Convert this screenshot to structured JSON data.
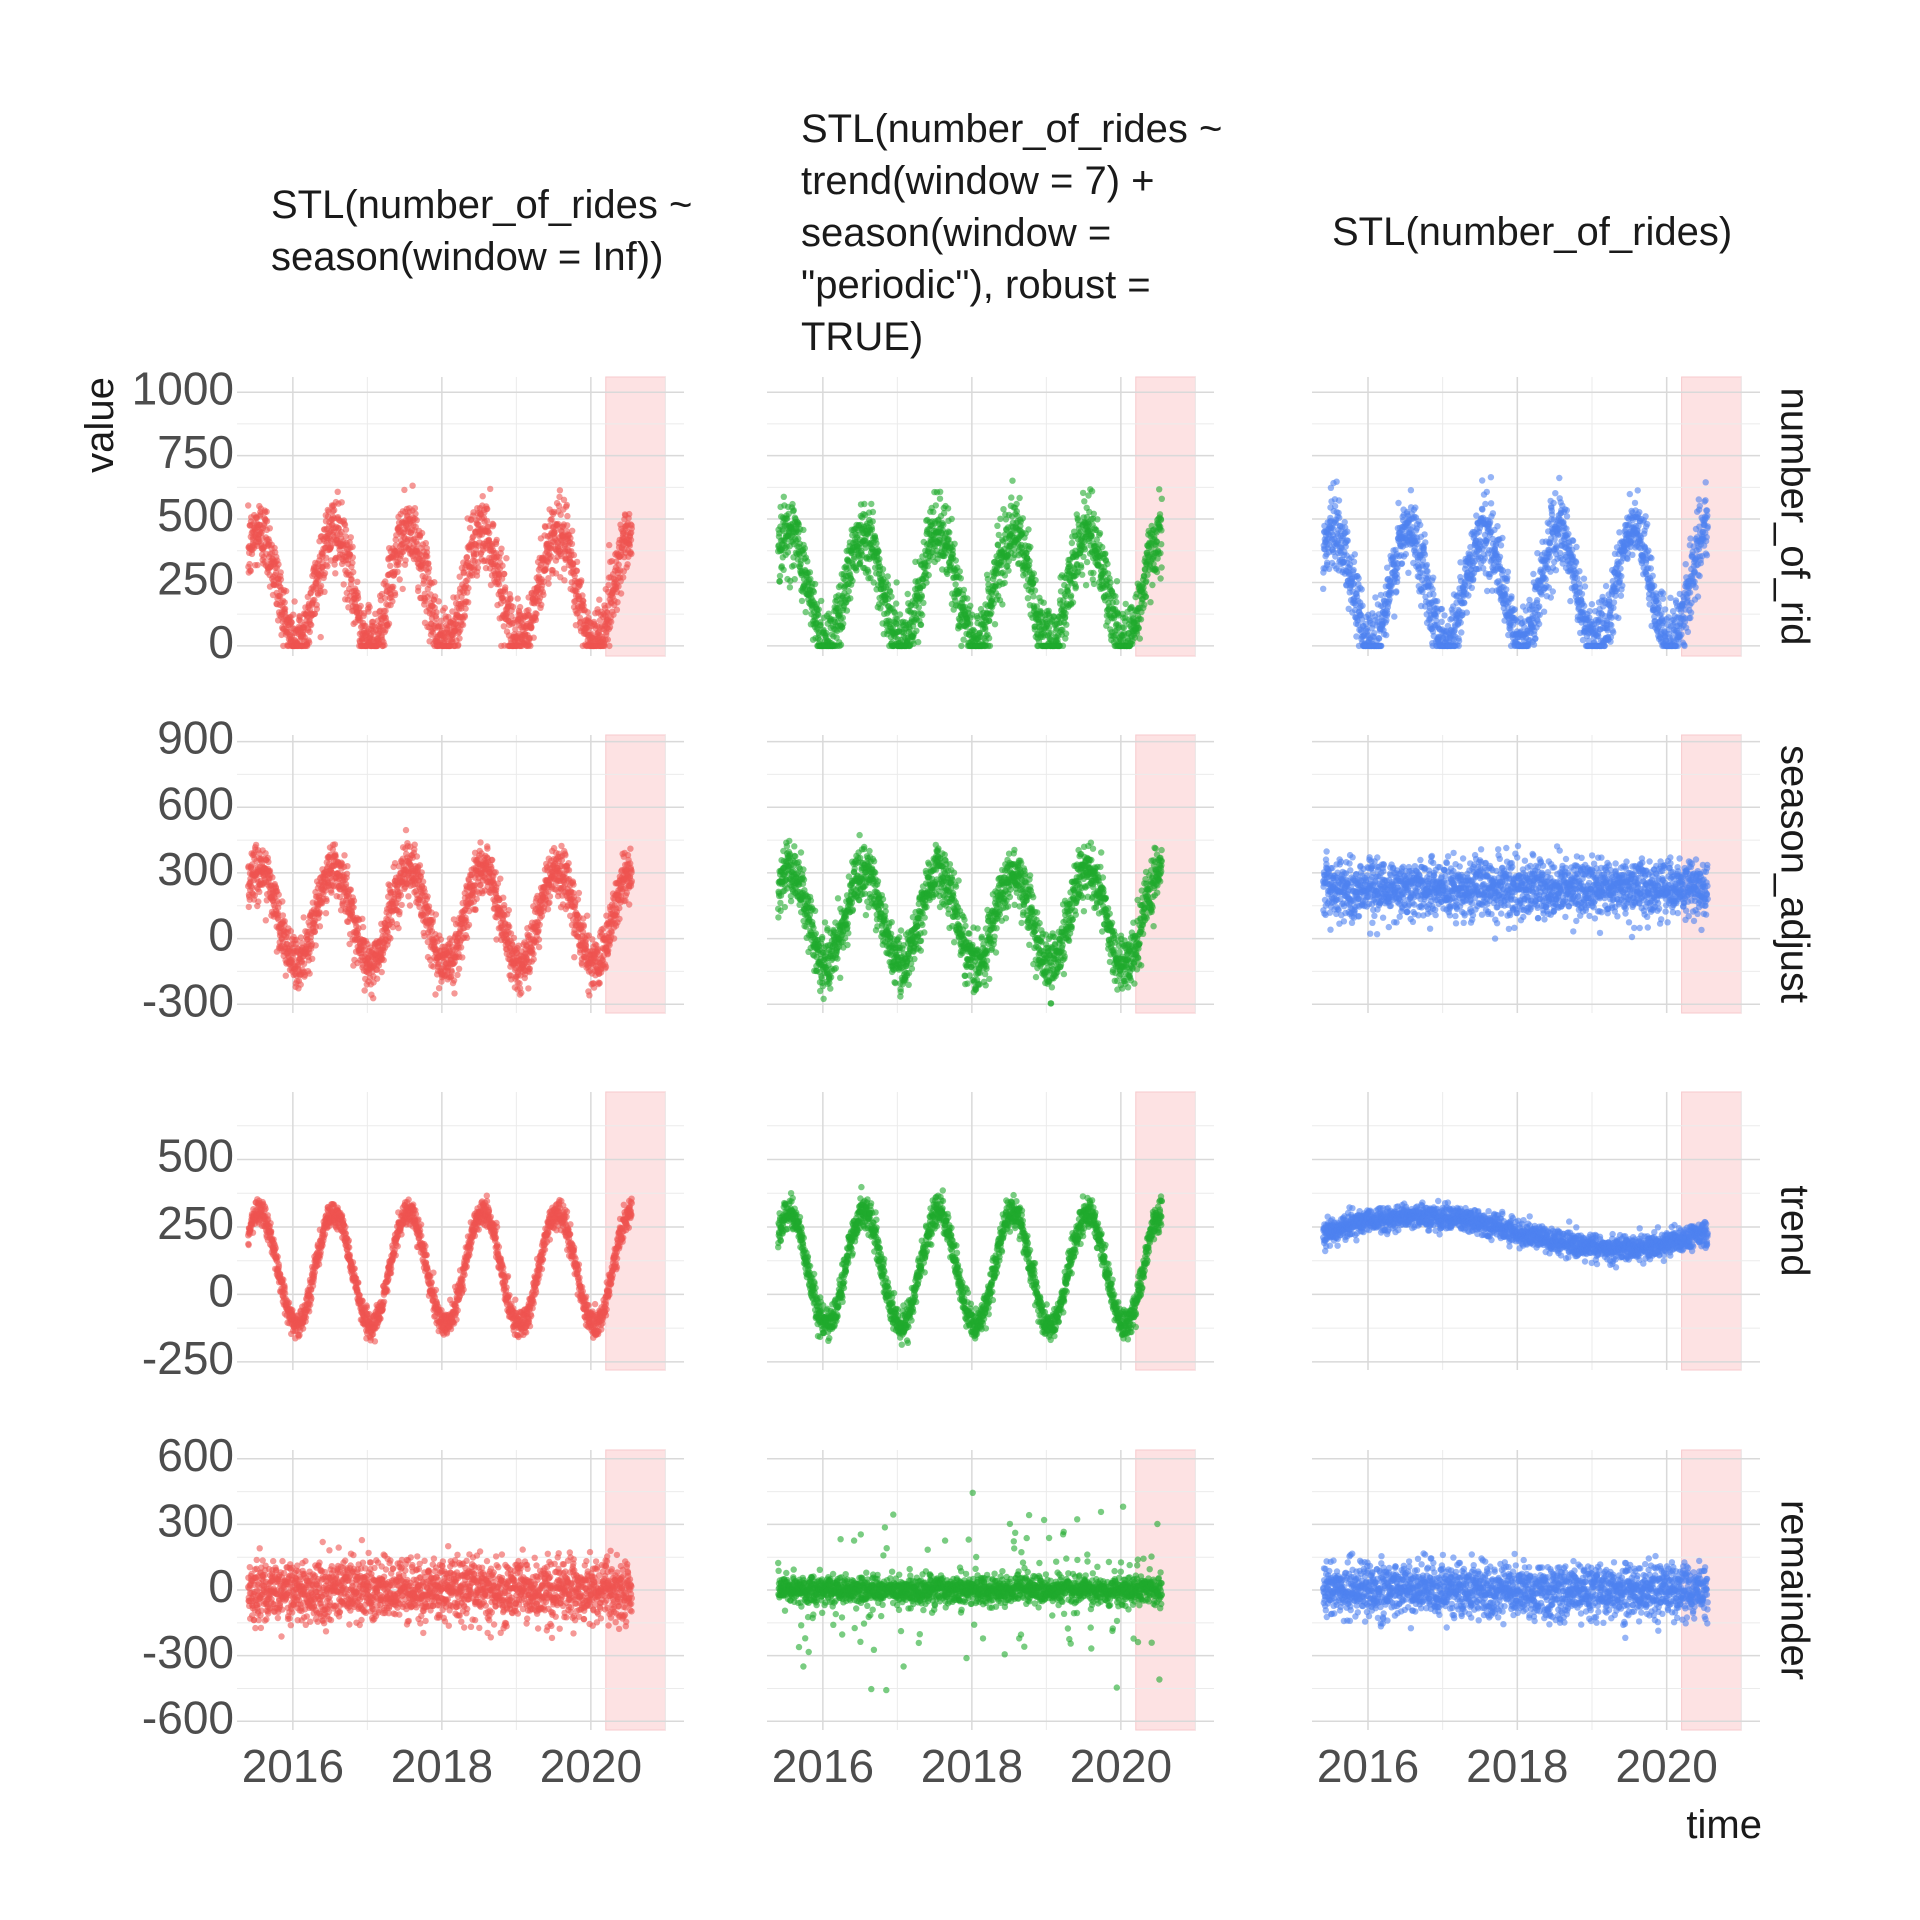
{
  "axes": {
    "xlabel": "time",
    "ylabel": "value"
  },
  "chart_data": {
    "type": "scatter",
    "x_axis": {
      "ticks": [
        2016,
        2018,
        2020
      ],
      "range": [
        2015.25,
        2021.25
      ]
    },
    "highlight_range": [
      2020.2,
      2021.0
    ],
    "highlight_color": "#fde2e3",
    "columns": [
      {
        "title": "STL(number_of_rides ~ season(window = Inf))",
        "title_lines": [
          "STL(number_of_rides ~",
          "season(window = Inf))"
        ],
        "color": "#ef5350"
      },
      {
        "title": "STL(number_of_rides ~ trend(window = 7) + season(window = \"periodic\"), robust = TRUE)",
        "title_lines": [
          "STL(number_of_rides ~",
          "trend(window = 7) +",
          "season(window =",
          "\"periodic\"), robust =",
          "TRUE)"
        ],
        "color": "#1faa2d"
      },
      {
        "title": "STL(number_of_rides)",
        "title_lines": [
          "STL(number_of_rides)"
        ],
        "color": "#4f82f0"
      }
    ],
    "rows": [
      {
        "name": "number_of_rides",
        "strip_label": "number_of_rid",
        "ylim": [
          -40,
          1060
        ],
        "yticks": [
          0,
          250,
          500,
          750,
          1000
        ],
        "ytick_labels": [
          "0",
          "250",
          "500",
          "750",
          "1000"
        ]
      },
      {
        "name": "season_adjust",
        "strip_label": "season_adjust",
        "ylim": [
          -340,
          930
        ],
        "yticks": [
          -300,
          0,
          300,
          600,
          900
        ],
        "ytick_labels": [
          "-300",
          "0",
          "300",
          "600",
          "900"
        ]
      },
      {
        "name": "trend",
        "strip_label": "trend",
        "ylim": [
          -280,
          750
        ],
        "yticks": [
          -250,
          0,
          250,
          500
        ],
        "ytick_labels": [
          "-250",
          "0",
          "250",
          "500"
        ]
      },
      {
        "name": "remainder",
        "strip_label": "remainder",
        "ylim": [
          -640,
          640
        ],
        "yticks": [
          -600,
          -300,
          0,
          300,
          600
        ],
        "ytick_labels": [
          "-600",
          "-300",
          "0",
          "300",
          "600"
        ]
      }
    ],
    "series_description": [
      {
        "column": 0,
        "row": "number_of_rides",
        "mean": 230,
        "seasonal_amplitude": 220,
        "peak_in_year": 0.55,
        "noise_sd": 70,
        "x_start": 2015.4,
        "x_end": 2020.55
      },
      {
        "column": 0,
        "row": "season_adjust",
        "mean": 100,
        "seasonal_amplitude": 220,
        "peak_in_year": 0.55,
        "noise_sd": 60
      },
      {
        "column": 0,
        "row": "trend",
        "mean": 95,
        "seasonal_amplitude": 210,
        "peak_in_year": 0.55,
        "noise_sd": 25
      },
      {
        "column": 0,
        "row": "remainder",
        "mean": 0,
        "noise_sd": 70
      },
      {
        "column": 1,
        "row": "number_of_rides",
        "mean": 230,
        "seasonal_amplitude": 220,
        "peak_in_year": 0.55,
        "noise_sd": 70
      },
      {
        "column": 1,
        "row": "season_adjust",
        "mean": 95,
        "seasonal_amplitude": 215,
        "peak_in_year": 0.55,
        "noise_sd": 65
      },
      {
        "column": 1,
        "row": "trend",
        "mean": 95,
        "seasonal_amplitude": 210,
        "peak_in_year": 0.55,
        "noise_sd": 30
      },
      {
        "column": 1,
        "row": "remainder",
        "mean": 0,
        "noise_sd": 30,
        "outlier_sd": 180
      },
      {
        "column": 2,
        "row": "number_of_rides",
        "mean": 230,
        "seasonal_amplitude": 220,
        "peak_in_year": 0.55,
        "noise_sd": 70
      },
      {
        "column": 2,
        "row": "season_adjust",
        "mean": 230,
        "seasonal_amplitude": 0,
        "noise_sd": 65
      },
      {
        "column": 2,
        "row": "trend",
        "mean": 230,
        "seasonal_amplitude": 0,
        "noise_sd": 22
      },
      {
        "column": 2,
        "row": "remainder",
        "mean": 0,
        "noise_sd": 60
      }
    ]
  }
}
